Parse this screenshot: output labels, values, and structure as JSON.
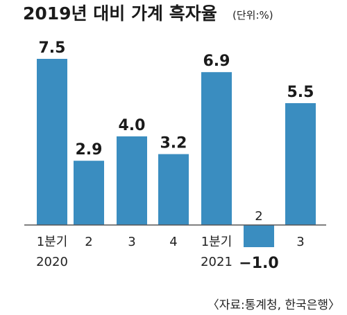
{
  "chart_data": {
    "type": "bar",
    "title": "2019년 대비 가계 흑자율",
    "unit": "(단위:%)",
    "categories": [
      "1분기\n2020",
      "2",
      "3",
      "4",
      "1분기\n2021",
      "2",
      "3"
    ],
    "values": [
      7.5,
      2.9,
      4.0,
      3.2,
      6.9,
      -1.0,
      5.5
    ],
    "value_labels": [
      "7.5",
      "2.9",
      "4.0",
      "3.2",
      "6.9",
      "−1.0",
      "5.5"
    ],
    "ylim": [
      -1.0,
      7.5
    ],
    "grid": false,
    "legend": "none",
    "source": "〈자료:통계청, 한국은행〉",
    "colors": {
      "bar": "#3a8dc0",
      "baseline": "#555555",
      "background": "#ffffff",
      "text": "#1a1a1a"
    }
  }
}
